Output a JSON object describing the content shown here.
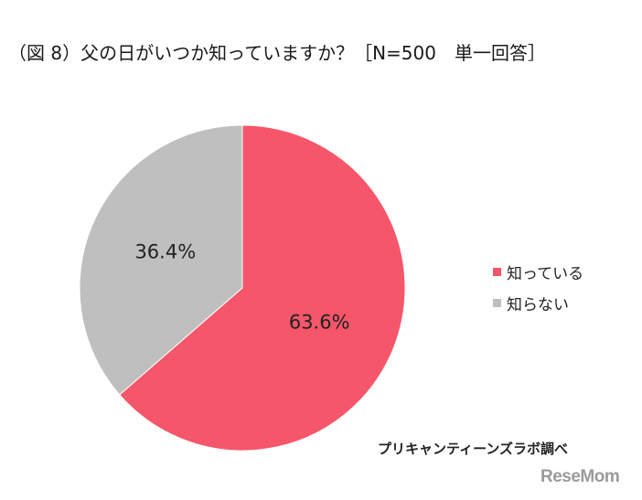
{
  "chart_data": {
    "type": "pie",
    "title": "（図 8）父の日がいつか知っていますか？［N=500　単一回答］",
    "slices": [
      {
        "label": "知っている",
        "value": 63.6,
        "value_label": "63.6%",
        "color": "#f55669"
      },
      {
        "label": "知らない",
        "value": 36.4,
        "value_label": "36.4%",
        "color": "#bfbfbf"
      }
    ],
    "start": "12 o'clock",
    "direction": "clockwise",
    "legend_position": "right"
  },
  "source_note": "プリキャンティーンズラボ調べ",
  "watermark": "ReseMom"
}
